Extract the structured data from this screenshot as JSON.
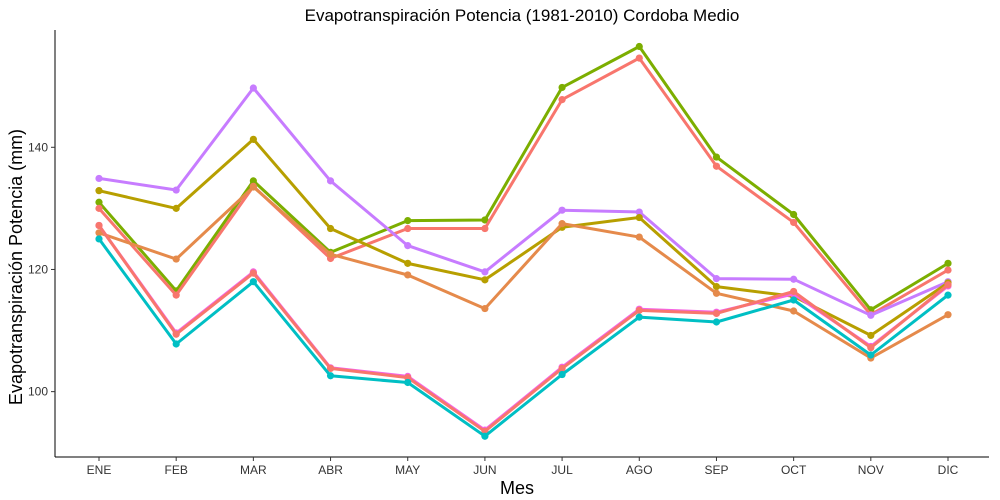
{
  "chart_data": {
    "type": "line",
    "title": "Evapotranspiración Potencia (1981-2010)  Cordoba Medio",
    "xlabel": "Mes",
    "ylabel": "Evapotranspiración Potencia  (mm)",
    "categories": [
      "ENE",
      "FEB",
      "MAR",
      "ABR",
      "MAY",
      "JUN",
      "JUL",
      "AGO",
      "SEP",
      "OCT",
      "NOV",
      "DIC"
    ],
    "yticks": [
      100,
      120,
      140
    ],
    "ylim": [
      89.3,
      159.2
    ],
    "grid": false,
    "legend": "none",
    "series": [
      {
        "color": "#7CAE00",
        "values": [
          131.0,
          116.5,
          134.5,
          122.8,
          128.0,
          128.1,
          149.8,
          156.5,
          138.4,
          129.0,
          113.4,
          121.0
        ]
      },
      {
        "color": "#F8766D",
        "values": [
          130.0,
          115.8,
          133.6,
          121.8,
          126.7,
          126.7,
          147.8,
          154.6,
          136.9,
          127.7,
          112.6,
          119.9
        ]
      },
      {
        "color": "#C77CFF",
        "values": [
          134.9,
          133.0,
          149.7,
          134.5,
          123.9,
          119.6,
          129.7,
          129.4,
          118.5,
          118.4,
          112.5,
          118.0
        ]
      },
      {
        "color": "#B79F00",
        "values": [
          132.9,
          130.0,
          141.3,
          126.7,
          121.0,
          118.3,
          126.9,
          128.5,
          117.2,
          115.6,
          109.2,
          117.8
        ]
      },
      {
        "color": "#E58A4B",
        "values": [
          126.0,
          121.7,
          133.5,
          122.5,
          119.1,
          113.6,
          127.5,
          125.3,
          116.1,
          113.2,
          105.5,
          112.6
        ]
      },
      {
        "color": "#F564E3",
        "values": [
          127.2,
          109.6,
          119.6,
          103.9,
          102.5,
          93.7,
          104.0,
          113.5,
          113.0,
          116.0,
          107.4,
          117.3
        ]
      },
      {
        "color": "#F8766D",
        "values": [
          127.2,
          109.4,
          119.4,
          103.8,
          102.3,
          93.5,
          103.8,
          113.3,
          112.8,
          116.4,
          107.2,
          117.5
        ]
      },
      {
        "color": "#00BFC4",
        "values": [
          125.0,
          107.8,
          118.0,
          102.6,
          101.5,
          92.7,
          102.8,
          112.2,
          111.4,
          115.0,
          106.0,
          115.8
        ]
      }
    ]
  }
}
